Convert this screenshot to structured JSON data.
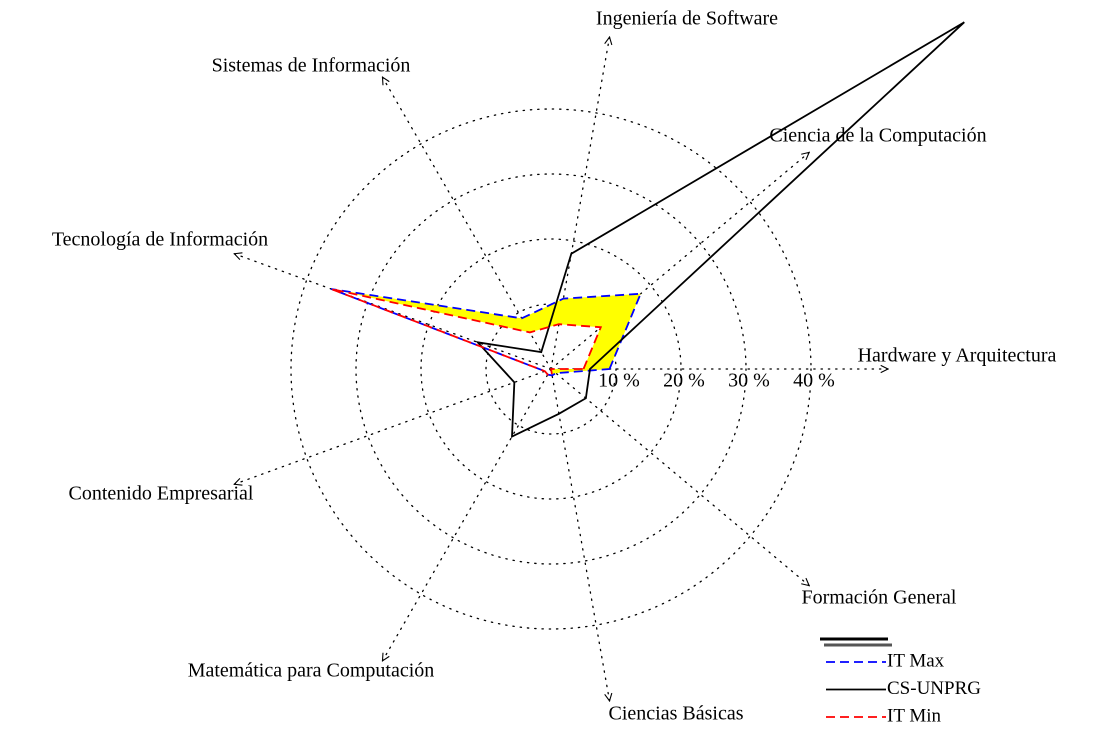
{
  "chart_data": {
    "type": "radar",
    "categories": [
      "Hardware y Arquitectura",
      "Ciencia de la Computación",
      "Ingeniería de Software",
      "Sistemas de Información",
      "Tecnología de Información",
      "Contenido Empresarial",
      "Matemática para Computación",
      "Ciencias Básicas",
      "Formación General"
    ],
    "rlim": [
      0,
      40
    ],
    "rticks": [
      {
        "value": 10,
        "label": "10 %"
      },
      {
        "value": 20,
        "label": "20 %"
      },
      {
        "value": 30,
        "label": "30 %"
      },
      {
        "value": 40,
        "label": "40 %"
      }
    ],
    "grid": true,
    "fill_between": {
      "color": "#ffff00",
      "series": [
        0,
        2
      ]
    },
    "series": [
      {
        "name": "IT Max",
        "color": "#0000ff",
        "dash": true,
        "values": [
          9,
          18,
          11,
          9,
          36,
          1,
          1,
          1,
          1
        ]
      },
      {
        "name": "CS-UNPRG",
        "color": "#000000",
        "dash": false,
        "values": [
          6,
          83,
          18,
          3,
          12,
          6,
          12,
          7,
          7
        ]
      },
      {
        "name": "IT Min",
        "color": "#ff0000",
        "dash": true,
        "values": [
          5,
          10,
          7,
          6.5,
          36,
          1,
          1,
          1,
          0
        ]
      }
    ]
  }
}
